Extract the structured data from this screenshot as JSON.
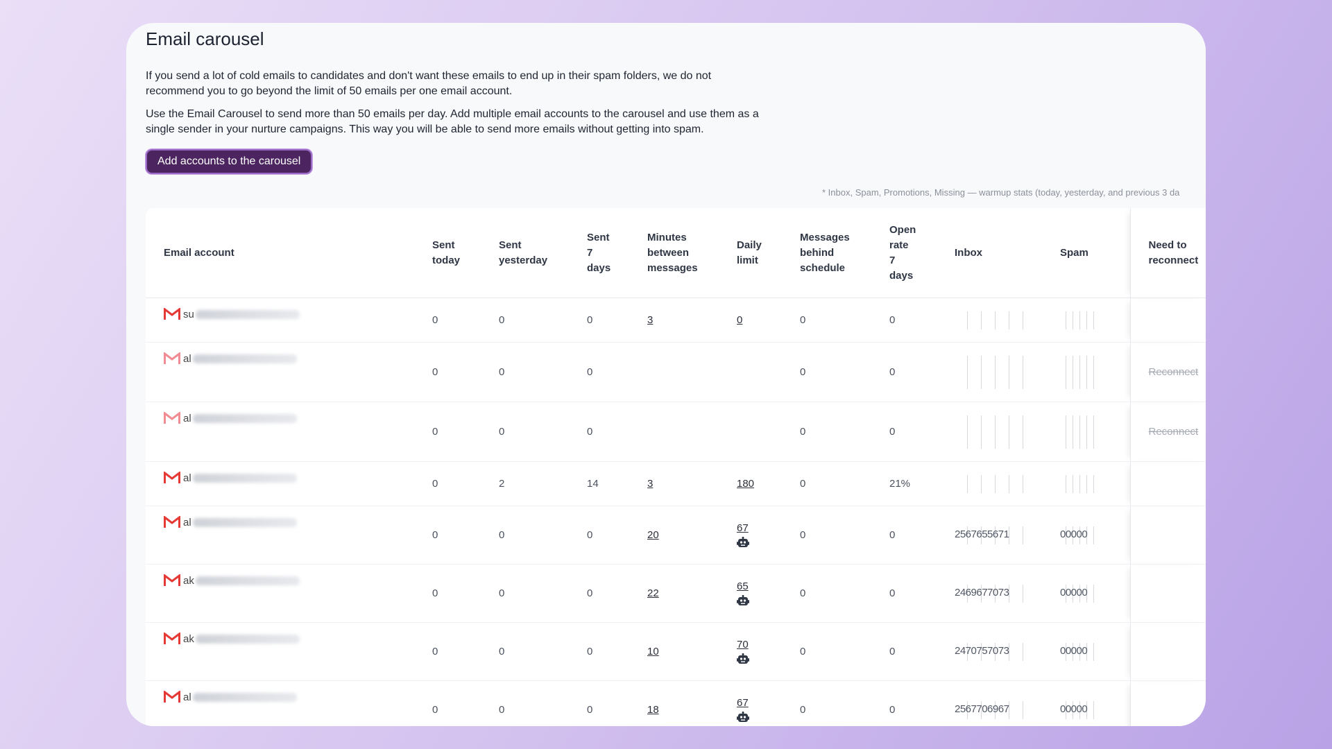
{
  "page": {
    "title": "Email carousel",
    "desc1": "If you send a lot of cold emails to candidates and don't want these emails to end up in their spam folders, we do not recommend you to go beyond the limit of 50 emails per one email account.",
    "desc2": "Use the Email Carousel to send more than 50 emails per day. Add multiple email accounts to the carousel and use them as a single sender in your nurture campaigns. This way you will be able to send more emails without getting into spam.",
    "add_button": "Add accounts to the carousel",
    "footnote": "* Inbox, Spam, Promotions, Missing — warmup stats (today, yesterday, and previous 3 da"
  },
  "colors": {
    "button_bg": "#4b2460",
    "gmail_red": "#e53935",
    "gmail_faded": "#f08c92"
  },
  "table": {
    "headers": {
      "account": "Email account",
      "sent_today": "Sent today",
      "sent_yesterday": "Sent yesterday",
      "sent_7": "Sent 7 days",
      "minutes": "Minutes between messages",
      "daily_limit": "Daily limit",
      "behind": "Messages behind schedule",
      "open_rate": "Open rate 7 days",
      "inbox": "Inbox",
      "spam": "Spam",
      "reconnect": "Need to reconnect"
    },
    "rows": [
      {
        "prefix": "su",
        "icon": "gmail-icon",
        "faded": false,
        "sent_today": "0",
        "sent_yesterday": "0",
        "sent_7": "0",
        "minutes": "3",
        "daily_limit": "0",
        "robot": false,
        "behind": "0",
        "open_rate": "0",
        "inbox": "",
        "spam": "",
        "reconnect": ""
      },
      {
        "prefix": "al",
        "icon": "gmail-icon",
        "faded": true,
        "sent_today": "0",
        "sent_yesterday": "0",
        "sent_7": "0",
        "minutes": "",
        "daily_limit": "",
        "robot": false,
        "behind": "0",
        "open_rate": "0",
        "inbox": "",
        "spam": "",
        "reconnect": "Reconnect"
      },
      {
        "prefix": "al",
        "icon": "gmail-icon",
        "faded": true,
        "sent_today": "0",
        "sent_yesterday": "0",
        "sent_7": "0",
        "minutes": "",
        "daily_limit": "",
        "robot": false,
        "behind": "0",
        "open_rate": "0",
        "inbox": "",
        "spam": "",
        "reconnect": "Reconnect"
      },
      {
        "prefix": "al",
        "icon": "gmail-icon",
        "faded": false,
        "sent_today": "0",
        "sent_yesterday": "2",
        "sent_7": "14",
        "minutes": "3",
        "daily_limit": "180",
        "robot": false,
        "behind": "0",
        "open_rate": "21%",
        "inbox": "",
        "spam": "",
        "reconnect": ""
      },
      {
        "prefix": "al",
        "icon": "gmail-icon",
        "faded": false,
        "sent_today": "0",
        "sent_yesterday": "0",
        "sent_7": "0",
        "minutes": "20",
        "daily_limit": "67",
        "robot": true,
        "behind": "0",
        "open_rate": "0",
        "inbox": "2567655671",
        "spam": "00000",
        "reconnect": ""
      },
      {
        "prefix": "ak",
        "icon": "gmail-icon",
        "faded": false,
        "sent_today": "0",
        "sent_yesterday": "0",
        "sent_7": "0",
        "minutes": "22",
        "daily_limit": "65",
        "robot": true,
        "behind": "0",
        "open_rate": "0",
        "inbox": "2469677073",
        "spam": "00000",
        "reconnect": ""
      },
      {
        "prefix": "ak",
        "icon": "gmail-icon",
        "faded": false,
        "sent_today": "0",
        "sent_yesterday": "0",
        "sent_7": "0",
        "minutes": "10",
        "daily_limit": "70",
        "robot": true,
        "behind": "0",
        "open_rate": "0",
        "inbox": "2470757073",
        "spam": "00000",
        "reconnect": ""
      },
      {
        "prefix": "al",
        "icon": "gmail-icon",
        "faded": false,
        "sent_today": "0",
        "sent_yesterday": "0",
        "sent_7": "0",
        "minutes": "18",
        "daily_limit": "67",
        "robot": true,
        "behind": "0",
        "open_rate": "0",
        "inbox": "2567706967",
        "spam": "00000",
        "reconnect": ""
      }
    ]
  }
}
